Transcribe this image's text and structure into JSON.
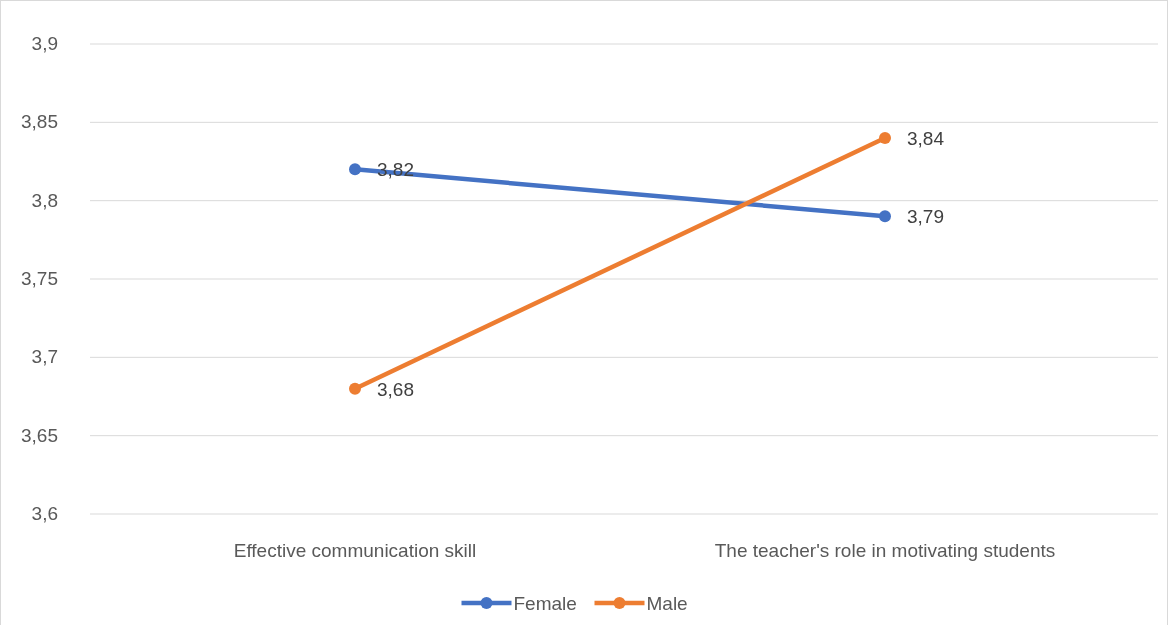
{
  "chart_data": {
    "type": "line",
    "categories": [
      "Effective communication skill",
      "The teacher's role in motivating students"
    ],
    "series": [
      {
        "name": "Female",
        "color": "#4472c4",
        "values": [
          3.82,
          3.79
        ],
        "value_labels": [
          "3,82",
          "3,79"
        ]
      },
      {
        "name": "Male",
        "color": "#ed7d31",
        "values": [
          3.68,
          3.84
        ],
        "value_labels": [
          "3,68",
          "3,84"
        ]
      }
    ],
    "ylim": [
      3.6,
      3.9
    ],
    "yticks": [
      {
        "value": 3.6,
        "label": "3,6"
      },
      {
        "value": 3.65,
        "label": "3,65"
      },
      {
        "value": 3.7,
        "label": "3,7"
      },
      {
        "value": 3.75,
        "label": "3,75"
      },
      {
        "value": 3.8,
        "label": "3,8"
      },
      {
        "value": 3.85,
        "label": "3,85"
      },
      {
        "value": 3.9,
        "label": "3,9"
      }
    ],
    "grid": "y",
    "legend": "bottom",
    "marker": "circle",
    "line_style": "solid"
  }
}
